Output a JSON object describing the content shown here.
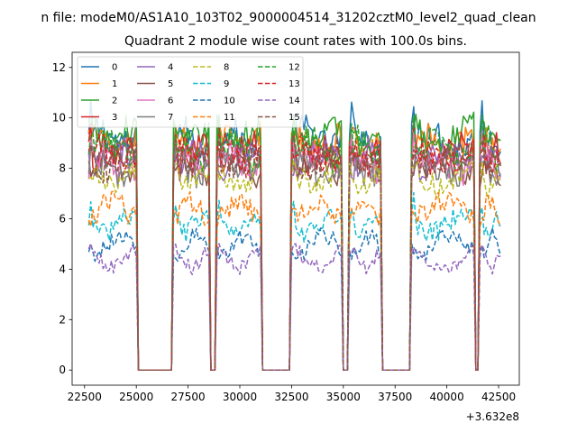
{
  "chart_data": {
    "type": "line",
    "suptitle": "n file: modeM0/AS1A10_103T02_9000004514_31202cztM0_level2_quad_clean",
    "title": "Quadrant 2 module wise count rates with 100.0s bins.",
    "xlabel": "",
    "ylabel": "",
    "x_offset_label": "+3.632e8",
    "xlim": [
      21900,
      43500
    ],
    "ylim": [
      -0.6,
      12.6
    ],
    "x_ticks": [
      22500,
      25000,
      27500,
      30000,
      32500,
      35000,
      37500,
      40000,
      42500
    ],
    "x_tick_labels": [
      "22500",
      "25000",
      "27500",
      "30000",
      "32500",
      "35000",
      "37500",
      "40000",
      "42500"
    ],
    "y_ticks": [
      0,
      2,
      4,
      6,
      8,
      10,
      12
    ],
    "y_tick_labels": [
      "0",
      "2",
      "4",
      "6",
      "8",
      "10",
      "12"
    ],
    "segments_on": [
      [
        22700,
        25000
      ],
      [
        26800,
        28500
      ],
      [
        28900,
        31000
      ],
      [
        32500,
        34900
      ],
      [
        35300,
        36800
      ],
      [
        38300,
        41300
      ],
      [
        41600,
        42600
      ]
    ],
    "series": [
      {
        "name": "0",
        "level": 9.2,
        "color": "#1f77b4",
        "style": "solid"
      },
      {
        "name": "1",
        "level": 9.0,
        "color": "#ff7f0e",
        "style": "solid"
      },
      {
        "name": "2",
        "level": 9.3,
        "color": "#2ca02c",
        "style": "solid"
      },
      {
        "name": "3",
        "level": 8.6,
        "color": "#d62728",
        "style": "solid"
      },
      {
        "name": "4",
        "level": 8.4,
        "color": "#9467bd",
        "style": "solid"
      },
      {
        "name": "5",
        "level": 8.1,
        "color": "#8c564b",
        "style": "solid"
      },
      {
        "name": "6",
        "level": 8.2,
        "color": "#e377c2",
        "style": "solid"
      },
      {
        "name": "7",
        "level": 8.0,
        "color": "#7f7f7f",
        "style": "solid"
      },
      {
        "name": "8",
        "level": 7.6,
        "color": "#bcbd22",
        "style": "dashed"
      },
      {
        "name": "9",
        "level": 5.8,
        "color": "#17becf",
        "style": "dashed"
      },
      {
        "name": "10",
        "level": 5.0,
        "color": "#1f77b4",
        "style": "dashed"
      },
      {
        "name": "11",
        "level": 6.4,
        "color": "#ff7f0e",
        "style": "dashed"
      },
      {
        "name": "12",
        "level": 8.8,
        "color": "#2ca02c",
        "style": "dashed"
      },
      {
        "name": "13",
        "level": 8.5,
        "color": "#d62728",
        "style": "dashed"
      },
      {
        "name": "14",
        "level": 4.4,
        "color": "#9467bd",
        "style": "dashed"
      },
      {
        "name": "15",
        "level": 8.3,
        "color": "#8c564b",
        "style": "dashed"
      }
    ],
    "legend": {
      "location": "upper-left",
      "columns": 4
    }
  }
}
